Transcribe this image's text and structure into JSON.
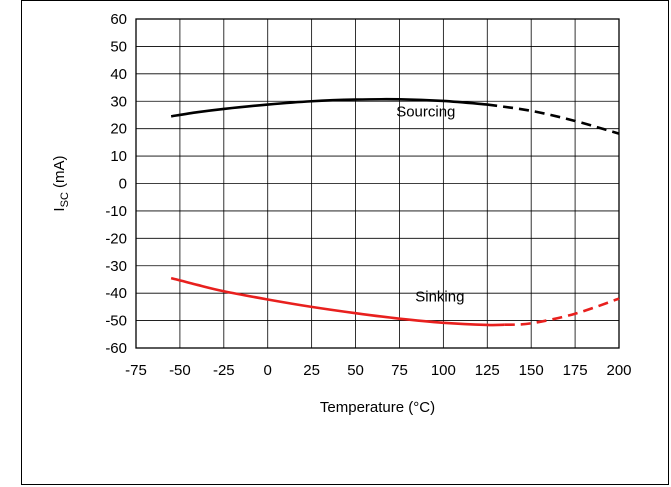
{
  "chart_data": {
    "type": "line",
    "xlabel": "Temperature (°C)",
    "ylabel_main": "I",
    "ylabel_sub": "SC",
    "ylabel_unit": " (mA)",
    "xlim": [
      -75,
      200
    ],
    "ylim": [
      -60,
      60
    ],
    "x_ticks": [
      "-75",
      "-50",
      "-25",
      "0",
      "25",
      "50",
      "75",
      "100",
      "125",
      "150",
      "175",
      "200"
    ],
    "y_ticks": [
      "60",
      "50",
      "40",
      "30",
      "20",
      "10",
      "0",
      "-10",
      "-20",
      "-30",
      "-40",
      "-50",
      "-60"
    ],
    "grid": true,
    "series": [
      {
        "name": "Sourcing",
        "color": "#000000",
        "solid": {
          "x": [
            -55,
            -40,
            -25,
            0,
            25,
            50,
            75,
            100,
            125
          ],
          "y": [
            24.5,
            26,
            27.2,
            28.8,
            30,
            30.6,
            30.7,
            30.1,
            28.8
          ]
        },
        "dashed": {
          "x": [
            125,
            150,
            175,
            200
          ],
          "y": [
            28.8,
            26.5,
            22.8,
            18.2
          ]
        },
        "label_pos": {
          "x": 90,
          "y": 24.5
        }
      },
      {
        "name": "Sinking",
        "color": "#e8201e",
        "solid": {
          "x": [
            -55,
            -40,
            -25,
            0,
            25,
            50,
            75,
            100,
            125,
            135
          ],
          "y": [
            -34.5,
            -37,
            -39.3,
            -42.3,
            -45,
            -47.3,
            -49.3,
            -50.8,
            -51.6,
            -51.5
          ]
        },
        "dashed": {
          "x": [
            135,
            150,
            175,
            200
          ],
          "y": [
            -51.5,
            -51,
            -47.5,
            -42
          ]
        },
        "label_pos": {
          "x": 98,
          "y": -43
        }
      }
    ]
  }
}
